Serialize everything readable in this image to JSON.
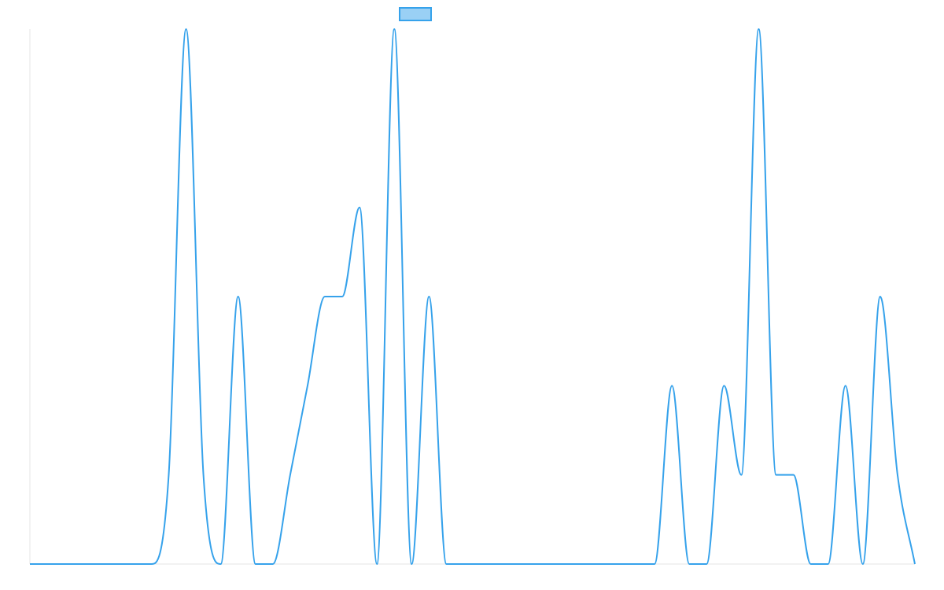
{
  "chart_data": {
    "type": "line",
    "x": [
      0,
      1,
      2,
      3,
      4,
      5,
      6,
      7,
      8,
      9,
      10,
      11,
      12,
      13,
      14,
      15,
      16,
      17,
      18,
      19,
      20,
      21,
      22,
      23,
      24,
      25,
      26,
      27,
      28,
      29,
      30,
      31,
      32,
      33,
      34,
      35,
      36,
      37,
      38,
      39,
      40,
      41,
      42,
      43,
      44,
      45,
      46,
      47,
      48,
      49,
      50,
      51
    ],
    "series": [
      {
        "values": [
          0,
          0,
          0,
          0,
          0,
          0,
          0,
          0,
          0.5,
          3,
          0.5,
          0,
          1.5,
          0,
          0,
          0.5,
          1,
          1.5,
          1.5,
          2,
          0,
          3,
          0,
          1.5,
          0,
          0,
          0,
          0,
          0,
          0,
          0,
          0,
          0,
          0,
          0,
          0,
          0,
          1,
          0,
          0,
          1,
          0.5,
          3,
          0.5,
          0.5,
          0,
          0,
          1,
          0,
          1.5,
          0.5,
          0
        ],
        "color": "#36a2eb",
        "legend_fill": "#9ad0f5"
      }
    ],
    "ylim": [
      0,
      3
    ],
    "grid": false,
    "smooth": true,
    "legend": "top-center",
    "axis_color": "#e5e5e5",
    "tick_labels_visible": false
  }
}
